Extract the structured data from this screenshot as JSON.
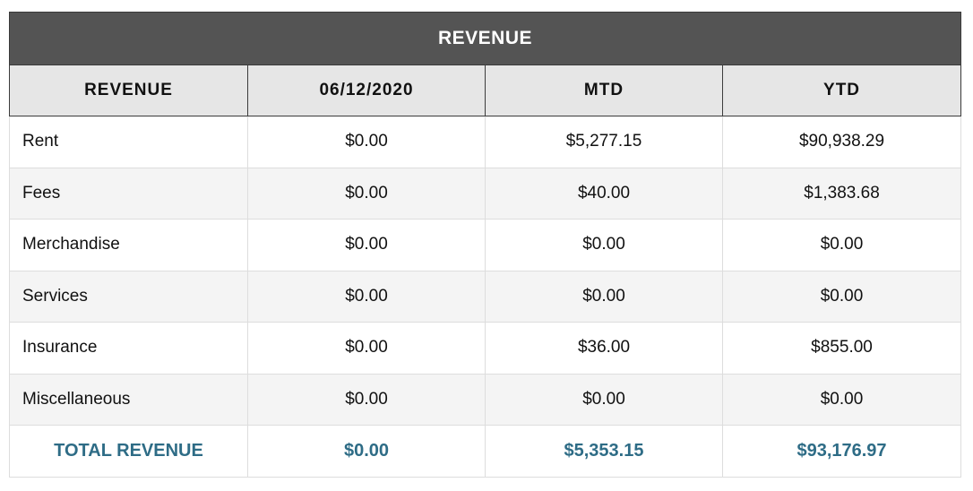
{
  "table": {
    "title": "REVENUE",
    "columns": [
      "REVENUE",
      "06/12/2020",
      "MTD",
      "YTD"
    ],
    "rows": [
      {
        "label": "Rent",
        "day": "$0.00",
        "mtd": "$5,277.15",
        "ytd": "$90,938.29"
      },
      {
        "label": "Fees",
        "day": "$0.00",
        "mtd": "$40.00",
        "ytd": "$1,383.68"
      },
      {
        "label": "Merchandise",
        "day": "$0.00",
        "mtd": "$0.00",
        "ytd": "$0.00"
      },
      {
        "label": "Services",
        "day": "$0.00",
        "mtd": "$0.00",
        "ytd": "$0.00"
      },
      {
        "label": "Insurance",
        "day": "$0.00",
        "mtd": "$36.00",
        "ytd": "$855.00"
      },
      {
        "label": "Miscellaneous",
        "day": "$0.00",
        "mtd": "$0.00",
        "ytd": "$0.00"
      }
    ],
    "total": {
      "label": "TOTAL REVENUE",
      "day": "$0.00",
      "mtd": "$5,353.15",
      "ytd": "$93,176.97"
    }
  },
  "colors": {
    "title_bg": "#545454",
    "header_bg": "#e6e6e6",
    "total_text": "#2e6c86"
  }
}
